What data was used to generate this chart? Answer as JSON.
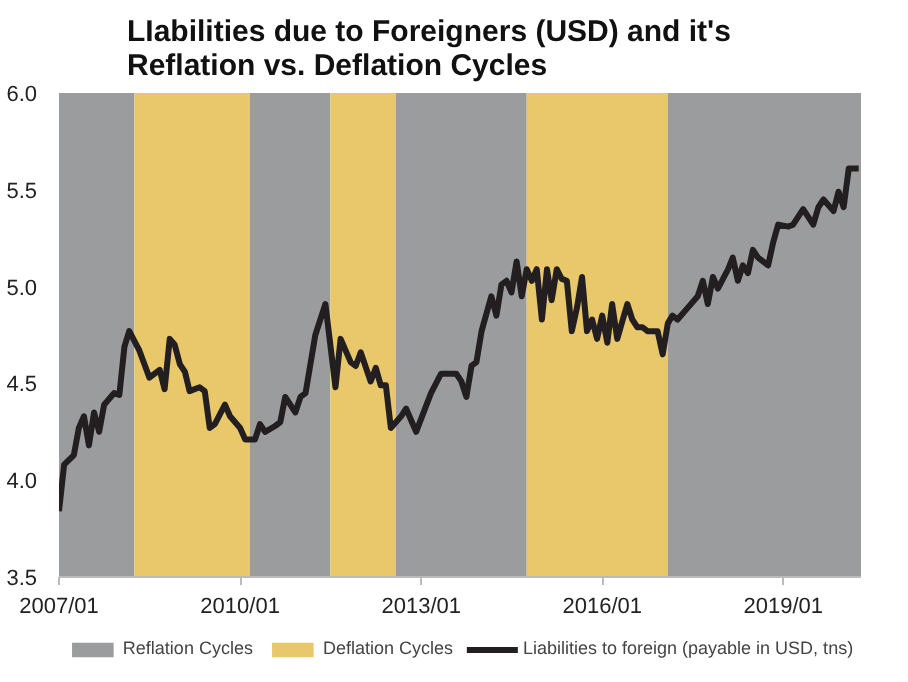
{
  "chart_data": {
    "type": "line",
    "title": "LIabilities due to Foreigners (USD) and it's Reflation vs. Deflation Cycles",
    "x": [
      "2007-01",
      "2007-02",
      "2007-04",
      "2007-05",
      "2007-06",
      "2007-07",
      "2007-08",
      "2007-09",
      "2007-10",
      "2007-12",
      "2008-01",
      "2008-02",
      "2008-03",
      "2008-05",
      "2008-07",
      "2008-09",
      "2008-10",
      "2008-11",
      "2008-12",
      "2009-01",
      "2009-02",
      "2009-03",
      "2009-05",
      "2009-06",
      "2009-07",
      "2009-08",
      "2009-10",
      "2009-11",
      "2010-01",
      "2010-02",
      "2010-04",
      "2010-05",
      "2010-06",
      "2010-08",
      "2010-09",
      "2010-10",
      "2010-12",
      "2011-01",
      "2011-02",
      "2011-04",
      "2011-06",
      "2011-08",
      "2011-09",
      "2011-11",
      "2011-12",
      "2012-01",
      "2012-03",
      "2012-04",
      "2012-05",
      "2012-06",
      "2012-07",
      "2012-09",
      "2012-10",
      "2012-12",
      "2013-03",
      "2013-05",
      "2013-06",
      "2013-08",
      "2013-09",
      "2013-10",
      "2013-11",
      "2013-12",
      "2014-01",
      "2014-03",
      "2014-04",
      "2014-05",
      "2014-06",
      "2014-07",
      "2014-08",
      "2014-09",
      "2014-10",
      "2014-11",
      "2014-12",
      "2015-01",
      "2015-02",
      "2015-03",
      "2015-04",
      "2015-05",
      "2015-06",
      "2015-07",
      "2015-08",
      "2015-09",
      "2015-10",
      "2015-11",
      "2015-12",
      "2016-01",
      "2016-02",
      "2016-03",
      "2016-04",
      "2016-06",
      "2016-07",
      "2016-08",
      "2016-09",
      "2016-10",
      "2016-12",
      "2017-01",
      "2017-02",
      "2017-03",
      "2017-04",
      "2017-06",
      "2017-08",
      "2017-09",
      "2017-10",
      "2017-11",
      "2017-12",
      "2018-02",
      "2018-03",
      "2018-04",
      "2018-05",
      "2018-06",
      "2018-07",
      "2018-08",
      "2018-10",
      "2018-11",
      "2018-12",
      "2019-02",
      "2019-03",
      "2019-05",
      "2019-07",
      "2019-08",
      "2019-09",
      "2019-11",
      "2019-12",
      "2020-01",
      "2020-02",
      "2020-04"
    ],
    "series": [
      {
        "name": "Liabilities to foreign (payable in USD, tns)",
        "color": "#231f20",
        "values": [
          3.84,
          4.08,
          4.13,
          4.27,
          4.33,
          4.18,
          4.35,
          4.25,
          4.39,
          4.45,
          4.44,
          4.69,
          4.77,
          4.67,
          4.53,
          4.57,
          4.47,
          4.73,
          4.7,
          4.6,
          4.56,
          4.46,
          4.48,
          4.46,
          4.27,
          4.29,
          4.39,
          4.33,
          4.27,
          4.21,
          4.21,
          4.29,
          4.25,
          4.28,
          4.3,
          4.43,
          4.35,
          4.43,
          4.45,
          4.75,
          4.91,
          4.48,
          4.73,
          4.61,
          4.59,
          4.66,
          4.51,
          4.58,
          4.49,
          4.49,
          4.27,
          4.33,
          4.37,
          4.25,
          4.45,
          4.55,
          4.55,
          4.55,
          4.51,
          4.43,
          4.59,
          4.61,
          4.77,
          4.95,
          4.85,
          5.01,
          5.03,
          4.97,
          5.13,
          4.95,
          5.09,
          5.03,
          5.09,
          4.83,
          5.09,
          4.93,
          5.09,
          5.04,
          5.03,
          4.77,
          4.89,
          5.05,
          4.77,
          4.83,
          4.73,
          4.85,
          4.71,
          4.91,
          4.73,
          4.91,
          4.83,
          4.79,
          4.79,
          4.77,
          4.77,
          4.65,
          4.81,
          4.85,
          4.83,
          4.89,
          4.95,
          5.03,
          4.91,
          5.05,
          4.99,
          5.09,
          5.15,
          5.03,
          5.11,
          5.07,
          5.19,
          5.15,
          5.11,
          5.23,
          5.32,
          5.31,
          5.32,
          5.4,
          5.32,
          5.41,
          5.45,
          5.39,
          5.49,
          5.41,
          5.61,
          5.61
        ]
      }
    ],
    "bands": [
      {
        "axis": "x",
        "from": "2007-01",
        "to": "2008-04",
        "label": "Reflation Cycles",
        "color": "#9a9c9e"
      },
      {
        "axis": "x",
        "from": "2008-04",
        "to": "2010-03",
        "label": "Deflation Cycles",
        "color": "#e8c86a"
      },
      {
        "axis": "x",
        "from": "2010-03",
        "to": "2011-07",
        "color": "#9a9c9e"
      },
      {
        "axis": "x",
        "from": "2011-07",
        "to": "2012-08",
        "color": "#e8c86a"
      },
      {
        "axis": "x",
        "from": "2012-08",
        "to": "2014-10",
        "color": "#9a9c9e"
      },
      {
        "axis": "x",
        "from": "2014-10",
        "to": "2017-02",
        "color": "#e8c86a"
      },
      {
        "axis": "x",
        "from": "2017-02",
        "to": "2020-04-15",
        "color": "#9a9c9e"
      }
    ],
    "xlim": [
      "2007-01",
      "2020-04-15"
    ],
    "xticks": [
      {
        "value": "2007-01",
        "label": "2007/01"
      },
      {
        "value": "2010-01",
        "label": "2010/01"
      },
      {
        "value": "2013-01",
        "label": "2013/01"
      },
      {
        "value": "2016-01",
        "label": "2016/01"
      },
      {
        "value": "2019-01",
        "label": "2019/01"
      }
    ],
    "ylim": [
      3.5,
      6.0
    ],
    "yticks": [
      {
        "value": 3.5,
        "label": "3.5"
      },
      {
        "value": 4.0,
        "label": "4.0"
      },
      {
        "value": 4.5,
        "label": "4.5"
      },
      {
        "value": 5.0,
        "label": "5.0"
      },
      {
        "value": 5.5,
        "label": "5.5"
      },
      {
        "value": 6.0,
        "label": "6.0"
      }
    ],
    "grid": false,
    "legend": "bottom",
    "marker": "none",
    "line_style": "solid"
  }
}
